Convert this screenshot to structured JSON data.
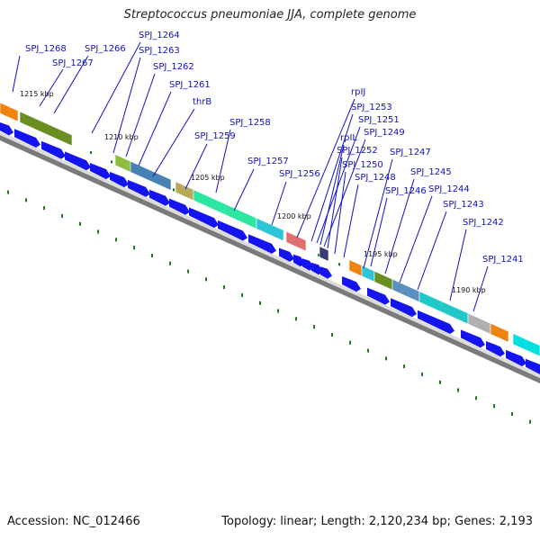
{
  "title": "Streptococcus pneumoniae JJA, complete genome",
  "accession_label": "Accession: NC_012466",
  "summary_label": "Topology: linear; Length: 2,120,234 bp; Genes: 2,193",
  "colors": {
    "cds_arrow": "#1414f0",
    "label": "#1010c8",
    "axis": "#777777",
    "tick_dot": "#1a7a1a"
  },
  "kbp_markers": [
    "1215 kbp",
    "1210 kbp",
    "1205 kbp",
    "1200 kbp",
    "1195 kbp",
    "1190 kbp"
  ],
  "gene_labels": [
    "SPJ_1268",
    "SPJ_1267",
    "SPJ_1266",
    "SPJ_1264",
    "SPJ_1263",
    "SPJ_1262",
    "SPJ_1261",
    "thrB",
    "SPJ_1258",
    "SPJ_1259",
    "SPJ_1257",
    "SPJ_1256",
    "rpIJ",
    "SPJ_1253",
    "SPJ_1251",
    "rpIL",
    "SPJ_1249",
    "SPJ_1252",
    "SPJ_1250",
    "SPJ_1248",
    "SPJ_1247",
    "SPJ_1246",
    "SPJ_1245",
    "SPJ_1244",
    "SPJ_1243",
    "SPJ_1242",
    "SPJ_1241"
  ],
  "gene_colors": [
    "#f0820f",
    "#6b8e23",
    "#8fbc3f",
    "#b8a85a",
    "#4682b4",
    "#2ee6a0",
    "#b0b0b0",
    "#e07070",
    "#3a3a78",
    "#2ec4d8",
    "#5a8fc0",
    "#20c8c8",
    "#00e0e0"
  ]
}
